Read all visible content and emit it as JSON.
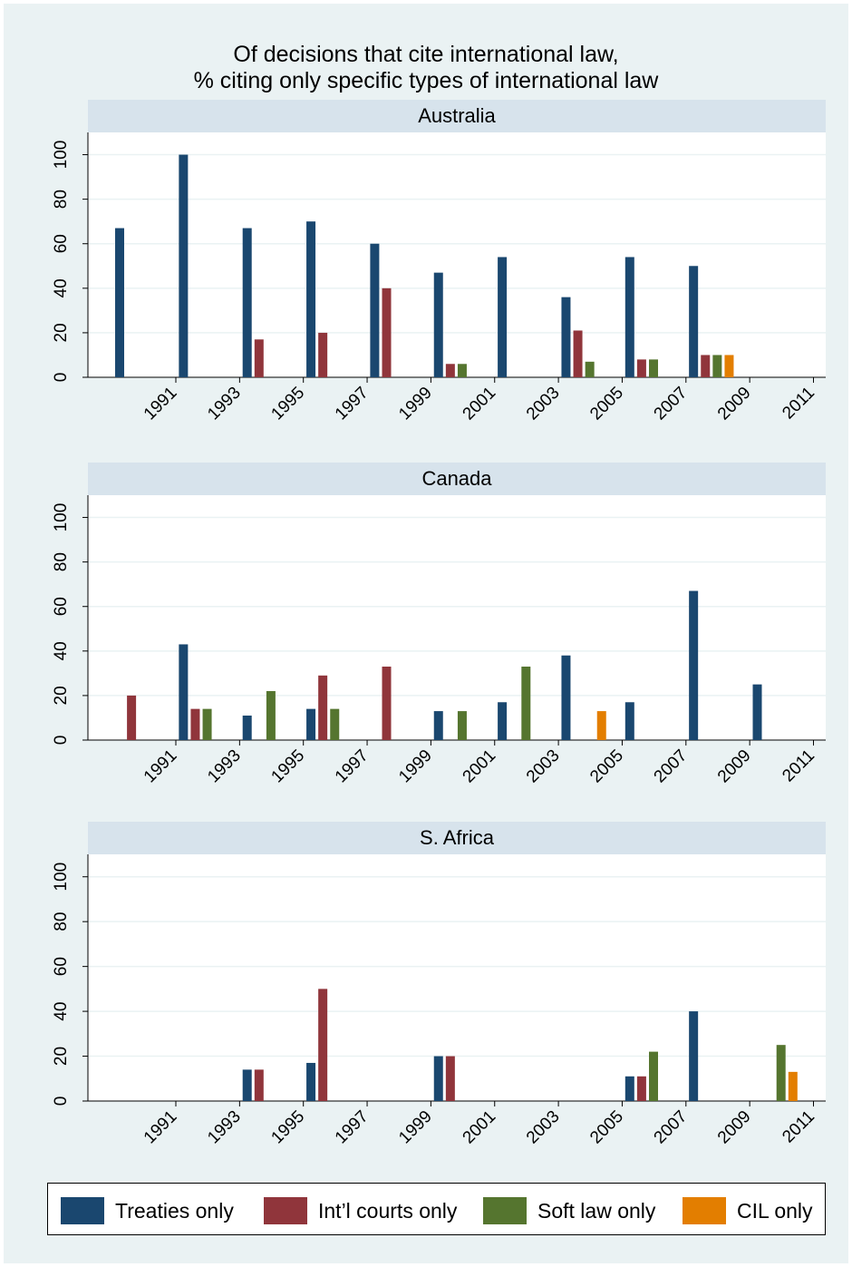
{
  "chart_data": {
    "type": "bar",
    "title": [
      "Of decisions that cite international law,",
      "% citing only specific types of international law"
    ],
    "xlabel": "",
    "ylabel": "",
    "ylim": [
      0,
      110
    ],
    "yticks": [
      0,
      20,
      40,
      60,
      80,
      100
    ],
    "categories": [
      "1991",
      "1993",
      "1995",
      "1997",
      "1999",
      "2001",
      "2003",
      "2005",
      "2007",
      "2009",
      "2011"
    ],
    "legend_position": "bottom",
    "grid": true,
    "colors": {
      "Treaties only": "#1a476f",
      "Int'l courts only": "#90353b",
      "Soft law only": "#55752f",
      "CIL only": "#e37e00"
    },
    "legend": [
      "Treaties only",
      "Int’l courts only",
      "Soft law only",
      "CIL only"
    ],
    "panels": [
      {
        "name": "Australia",
        "series": [
          {
            "name": "Treaties only",
            "values": [
              67,
              100,
              67,
              70,
              60,
              47,
              54,
              36,
              54,
              50,
              0
            ]
          },
          {
            "name": "Int’l courts only",
            "values": [
              0,
              0,
              17,
              20,
              40,
              6,
              0,
              21,
              8,
              10,
              0
            ]
          },
          {
            "name": "Soft law only",
            "values": [
              0,
              0,
              0,
              0,
              0,
              6,
              0,
              7,
              8,
              10,
              0
            ]
          },
          {
            "name": "CIL only",
            "values": [
              0,
              0,
              0,
              0,
              0,
              0,
              0,
              0,
              0,
              10,
              0
            ]
          }
        ]
      },
      {
        "name": "Canada",
        "series": [
          {
            "name": "Treaties only",
            "values": [
              0,
              43,
              11,
              14,
              0,
              13,
              17,
              38,
              17,
              67,
              25
            ]
          },
          {
            "name": "Int’l courts only",
            "values": [
              20,
              14,
              0,
              29,
              33,
              0,
              0,
              0,
              0,
              0,
              0
            ]
          },
          {
            "name": "Soft law only",
            "values": [
              0,
              14,
              22,
              14,
              0,
              13,
              33,
              0,
              0,
              0,
              0
            ]
          },
          {
            "name": "CIL only",
            "values": [
              0,
              0,
              0,
              0,
              0,
              0,
              0,
              13,
              0,
              0,
              0
            ]
          }
        ]
      },
      {
        "name": "S. Africa",
        "series": [
          {
            "name": "Treaties only",
            "values": [
              0,
              0,
              14,
              17,
              0,
              20,
              0,
              0,
              11,
              40,
              0
            ]
          },
          {
            "name": "Int’l courts only",
            "values": [
              0,
              0,
              14,
              50,
              0,
              20,
              0,
              0,
              11,
              0,
              0
            ]
          },
          {
            "name": "Soft law only",
            "values": [
              0,
              0,
              0,
              0,
              0,
              0,
              0,
              0,
              22,
              0,
              25
            ]
          },
          {
            "name": "CIL only",
            "values": [
              0,
              0,
              0,
              0,
              0,
              0,
              0,
              0,
              0,
              0,
              13
            ]
          }
        ]
      }
    ]
  }
}
